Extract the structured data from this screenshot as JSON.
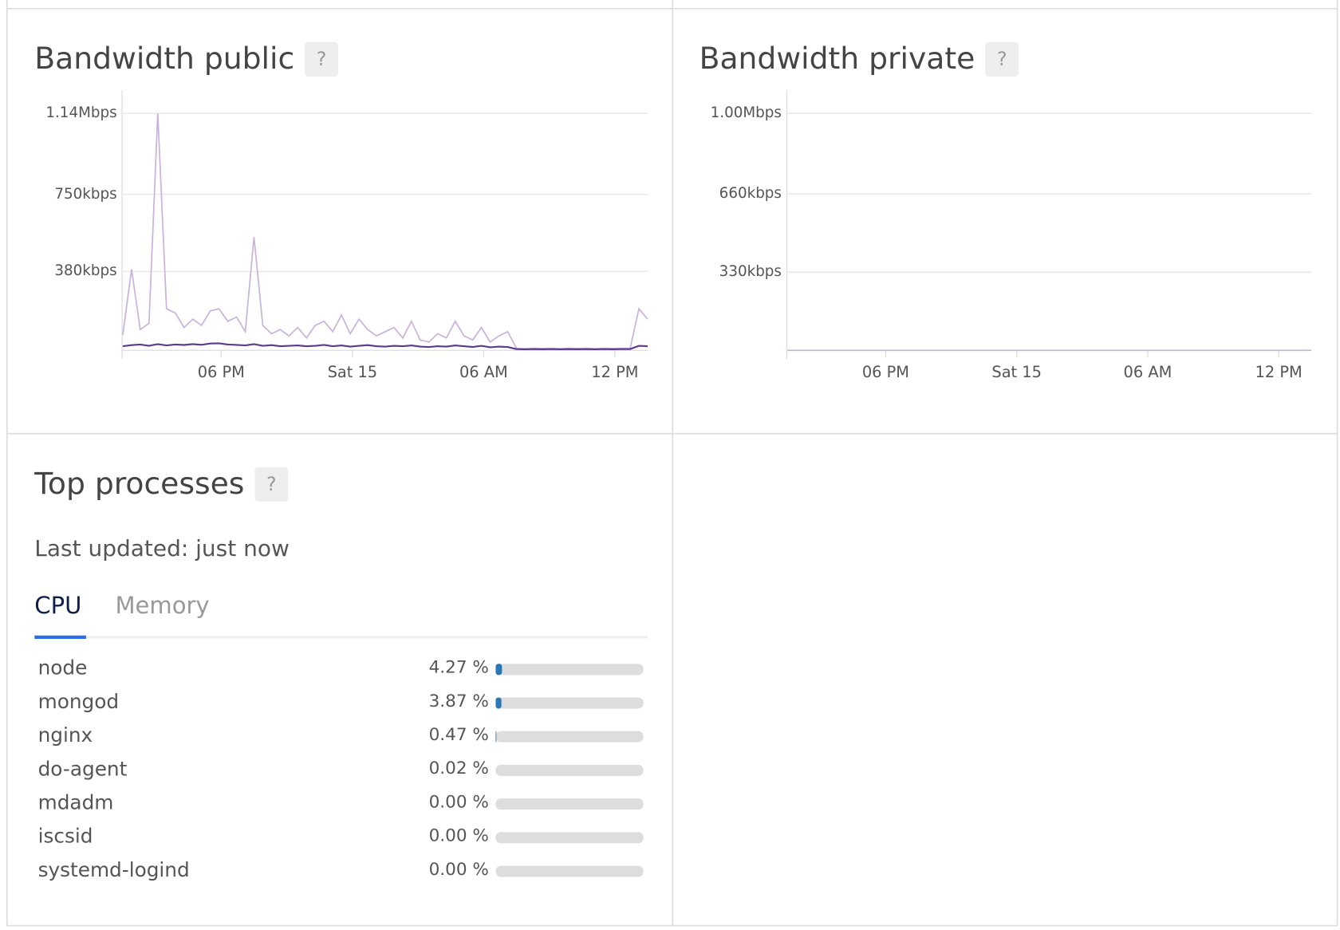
{
  "chart_data": [
    {
      "type": "line",
      "title": "Bandwidth public",
      "help": "?",
      "ylim": [
        0,
        1140
      ],
      "yticks": [
        {
          "value": 380,
          "label": "380kbps"
        },
        {
          "value": 750,
          "label": "750kbps"
        },
        {
          "value": 1140,
          "label": "1.14Mbps"
        }
      ],
      "xlim": [
        13.47,
        37.5
      ],
      "xticks": [
        {
          "value": 18,
          "label": "06 PM"
        },
        {
          "value": 24,
          "label": "Sat 15"
        },
        {
          "value": 30,
          "label": "06 AM"
        },
        {
          "value": 36,
          "label": "12 PM"
        }
      ],
      "grid": true,
      "series": [
        {
          "color": "#c9b3dc",
          "x": [
            13.5,
            13.9,
            14.3,
            14.7,
            15.1,
            15.5,
            15.9,
            16.3,
            16.7,
            17.1,
            17.5,
            17.9,
            18.3,
            18.7,
            19.1,
            19.5,
            19.9,
            20.3,
            20.7,
            21.1,
            21.5,
            21.9,
            22.3,
            22.7,
            23.1,
            23.5,
            23.9,
            24.3,
            24.7,
            25.1,
            25.5,
            25.9,
            26.3,
            26.7,
            27.1,
            27.5,
            27.9,
            28.3,
            28.7,
            29.1,
            29.5,
            29.9,
            30.3,
            30.7,
            31.1,
            31.5,
            31.9,
            32.3,
            32.7,
            33.1,
            33.5,
            33.9,
            34.3,
            34.7,
            35.1,
            35.5,
            35.9,
            36.3,
            36.7,
            37.1,
            37.5
          ],
          "values": [
            75,
            390,
            100,
            130,
            1140,
            200,
            180,
            110,
            150,
            120,
            190,
            200,
            140,
            160,
            90,
            545,
            120,
            80,
            100,
            70,
            110,
            60,
            120,
            140,
            90,
            170,
            80,
            150,
            100,
            70,
            90,
            110,
            60,
            140,
            50,
            40,
            80,
            60,
            140,
            70,
            50,
            110,
            40,
            70,
            90,
            10,
            8,
            10,
            9,
            10,
            8,
            10,
            9,
            10,
            8,
            10,
            9,
            10,
            10,
            200,
            150
          ]
        },
        {
          "color": "#5b3a8c",
          "x": [
            13.5,
            13.9,
            14.3,
            14.7,
            15.1,
            15.5,
            15.9,
            16.3,
            16.7,
            17.1,
            17.5,
            17.9,
            18.3,
            18.7,
            19.1,
            19.5,
            19.9,
            20.3,
            20.7,
            21.1,
            21.5,
            21.9,
            22.3,
            22.7,
            23.1,
            23.5,
            23.9,
            24.3,
            24.7,
            25.1,
            25.5,
            25.9,
            26.3,
            26.7,
            27.1,
            27.5,
            27.9,
            28.3,
            28.7,
            29.1,
            29.5,
            29.9,
            30.3,
            30.7,
            31.1,
            31.5,
            31.9,
            32.3,
            32.7,
            33.1,
            33.5,
            33.9,
            34.3,
            34.7,
            35.1,
            35.5,
            35.9,
            36.3,
            36.7,
            37.1,
            37.5
          ],
          "values": [
            20,
            25,
            28,
            22,
            30,
            24,
            28,
            26,
            30,
            27,
            33,
            34,
            28,
            26,
            24,
            30,
            22,
            25,
            20,
            22,
            24,
            20,
            22,
            26,
            20,
            24,
            18,
            22,
            25,
            20,
            18,
            22,
            20,
            24,
            18,
            16,
            20,
            18,
            24,
            20,
            16,
            22,
            15,
            18,
            16,
            6,
            5,
            6,
            5,
            6,
            5,
            6,
            5,
            6,
            5,
            6,
            5,
            6,
            6,
            22,
            20
          ]
        }
      ]
    },
    {
      "type": "line",
      "title": "Bandwidth private",
      "help": "?",
      "ylim": [
        0,
        1000
      ],
      "yticks": [
        {
          "value": 330,
          "label": "330kbps"
        },
        {
          "value": 660,
          "label": "660kbps"
        },
        {
          "value": 1000,
          "label": "1.00Mbps"
        }
      ],
      "xlim": [
        13.47,
        37.5
      ],
      "xticks": [
        {
          "value": 18,
          "label": "06 PM"
        },
        {
          "value": 24,
          "label": "Sat 15"
        },
        {
          "value": 30,
          "label": "06 AM"
        },
        {
          "value": 36,
          "label": "12 PM"
        }
      ],
      "grid": true,
      "series": [
        {
          "color": "#c9b3dc",
          "x": [
            13.5,
            37.5
          ],
          "values": [
            0,
            0
          ]
        }
      ]
    }
  ],
  "top_processes": {
    "title": "Top processes",
    "help": "?",
    "last_updated": "Last updated: just now",
    "tabs": [
      "CPU",
      "Memory"
    ],
    "xlim": [
      0,
      100
    ],
    "names": [
      "node",
      "mongod",
      "nginx",
      "do-agent",
      "mdadm",
      "iscsid",
      "systemd-logind"
    ],
    "values": [
      4.27,
      3.87,
      0.47,
      0.02,
      0.0,
      0.0,
      0.0
    ],
    "value_labels": [
      "4.27 %",
      "3.87 %",
      "0.47 %",
      "0.02 %",
      "0.00 %",
      "0.00 %",
      "0.00 %"
    ]
  }
}
